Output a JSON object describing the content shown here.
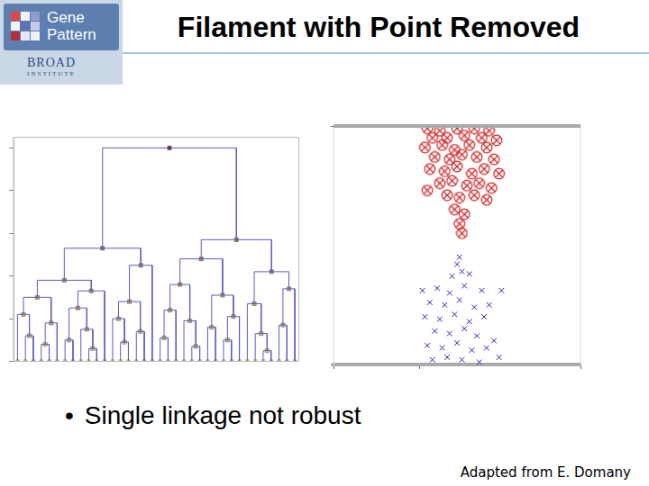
{
  "slide": {
    "logo": {
      "name": [
        "Gene",
        "Pattern"
      ],
      "org": [
        "BROAD",
        "INSTITUTE"
      ]
    },
    "title": "Filament with Point Removed",
    "bullets": [
      "Single linkage not robust"
    ],
    "credit": "Adapted from E. Domany"
  },
  "chart_data": [
    {
      "type": "dendrogram",
      "color": "#5b5bc8",
      "tick_labels": false,
      "ylim": [
        0,
        1.05
      ],
      "yticks": [
        0,
        0.2,
        0.4,
        0.6,
        0.8,
        1.0
      ],
      "tree": [
        1.0,
        [
          0.53,
          [
            0.38,
            [
              0.3,
              [
                0.22,
                0,
                [
                  0.12,
                  0,
                  0
                ]
              ],
              [
                0.18,
                [
                  0.08,
                  0,
                  0
                ],
                0
              ]
            ],
            [
              0.33,
              [
                0.25,
                [
                  0.1,
                  0,
                  0
                ],
                [
                  0.15,
                  0,
                  [
                    0.06,
                    0,
                    0
                  ]
                ]
              ],
              0
            ]
          ],
          [
            0.45,
            [
              0.28,
              [
                0.2,
                0,
                [
                  0.09,
                  0,
                  0
                ]
              ],
              [
                0.14,
                0,
                0
              ]
            ],
            0
          ]
        ],
        [
          0.57,
          [
            0.48,
            [
              0.36,
              [
                0.24,
                [
                  0.11,
                  0,
                  0
                ],
                0
              ],
              [
                0.19,
                0,
                [
                  0.07,
                  0,
                  0
                ]
              ]
            ],
            [
              0.31,
              [
                0.16,
                0,
                0
              ],
              [
                0.21,
                [
                  0.1,
                  0,
                  0
                ],
                0
              ]
            ]
          ],
          [
            0.42,
            [
              0.27,
              0,
              [
                0.13,
                0,
                [
                  0.05,
                  0,
                  0
                ]
              ]
            ],
            [
              0.34,
              [
                0.17,
                0,
                0
              ],
              0
            ]
          ]
        ]
      ]
    },
    {
      "type": "scatter",
      "tick_labels": false,
      "xlim": [
        0,
        1
      ],
      "xticks": [
        0,
        0.35,
        1
      ],
      "ylim": [
        0,
        1
      ],
      "yticks": [
        0,
        1
      ],
      "series": [
        {
          "color": "#d42020",
          "marker": "circle-x",
          "x": [
            0.38,
            0.43,
            0.5,
            0.57,
            0.63,
            0.4,
            0.46,
            0.53,
            0.6,
            0.66,
            0.37,
            0.44,
            0.49,
            0.55,
            0.62,
            0.41,
            0.47,
            0.52,
            0.58,
            0.65,
            0.39,
            0.45,
            0.5,
            0.56,
            0.61,
            0.67,
            0.43,
            0.48,
            0.54,
            0.59,
            0.64,
            0.38,
            0.46,
            0.51,
            0.57,
            0.62,
            0.49,
            0.53,
            0.51,
            0.52
          ],
          "values": [
            0.99,
            0.98,
            0.99,
            0.99,
            0.98,
            0.95,
            0.95,
            0.96,
            0.95,
            0.94,
            0.91,
            0.92,
            0.9,
            0.92,
            0.91,
            0.87,
            0.86,
            0.88,
            0.87,
            0.86,
            0.82,
            0.81,
            0.83,
            0.8,
            0.82,
            0.8,
            0.76,
            0.77,
            0.75,
            0.76,
            0.74,
            0.73,
            0.71,
            0.7,
            0.71,
            0.69,
            0.65,
            0.63,
            0.59,
            0.55
          ]
        },
        {
          "color": "#2222c0",
          "marker": "x",
          "x": [
            0.51,
            0.5,
            0.52,
            0.48,
            0.55,
            0.36,
            0.42,
            0.47,
            0.53,
            0.6,
            0.68,
            0.39,
            0.45,
            0.51,
            0.57,
            0.63,
            0.37,
            0.43,
            0.49,
            0.55,
            0.61,
            0.41,
            0.47,
            0.53,
            0.58,
            0.65,
            0.38,
            0.44,
            0.5,
            0.56,
            0.62,
            0.67,
            0.46,
            0.52,
            0.59,
            0.4
          ],
          "values": [
            0.45,
            0.42,
            0.39,
            0.37,
            0.38,
            0.31,
            0.32,
            0.3,
            0.33,
            0.31,
            0.31,
            0.26,
            0.25,
            0.27,
            0.24,
            0.25,
            0.2,
            0.19,
            0.21,
            0.18,
            0.2,
            0.14,
            0.13,
            0.15,
            0.12,
            0.1,
            0.08,
            0.07,
            0.09,
            0.06,
            0.07,
            0.03,
            0.03,
            0.02,
            0.01,
            0.02
          ]
        }
      ]
    }
  ]
}
